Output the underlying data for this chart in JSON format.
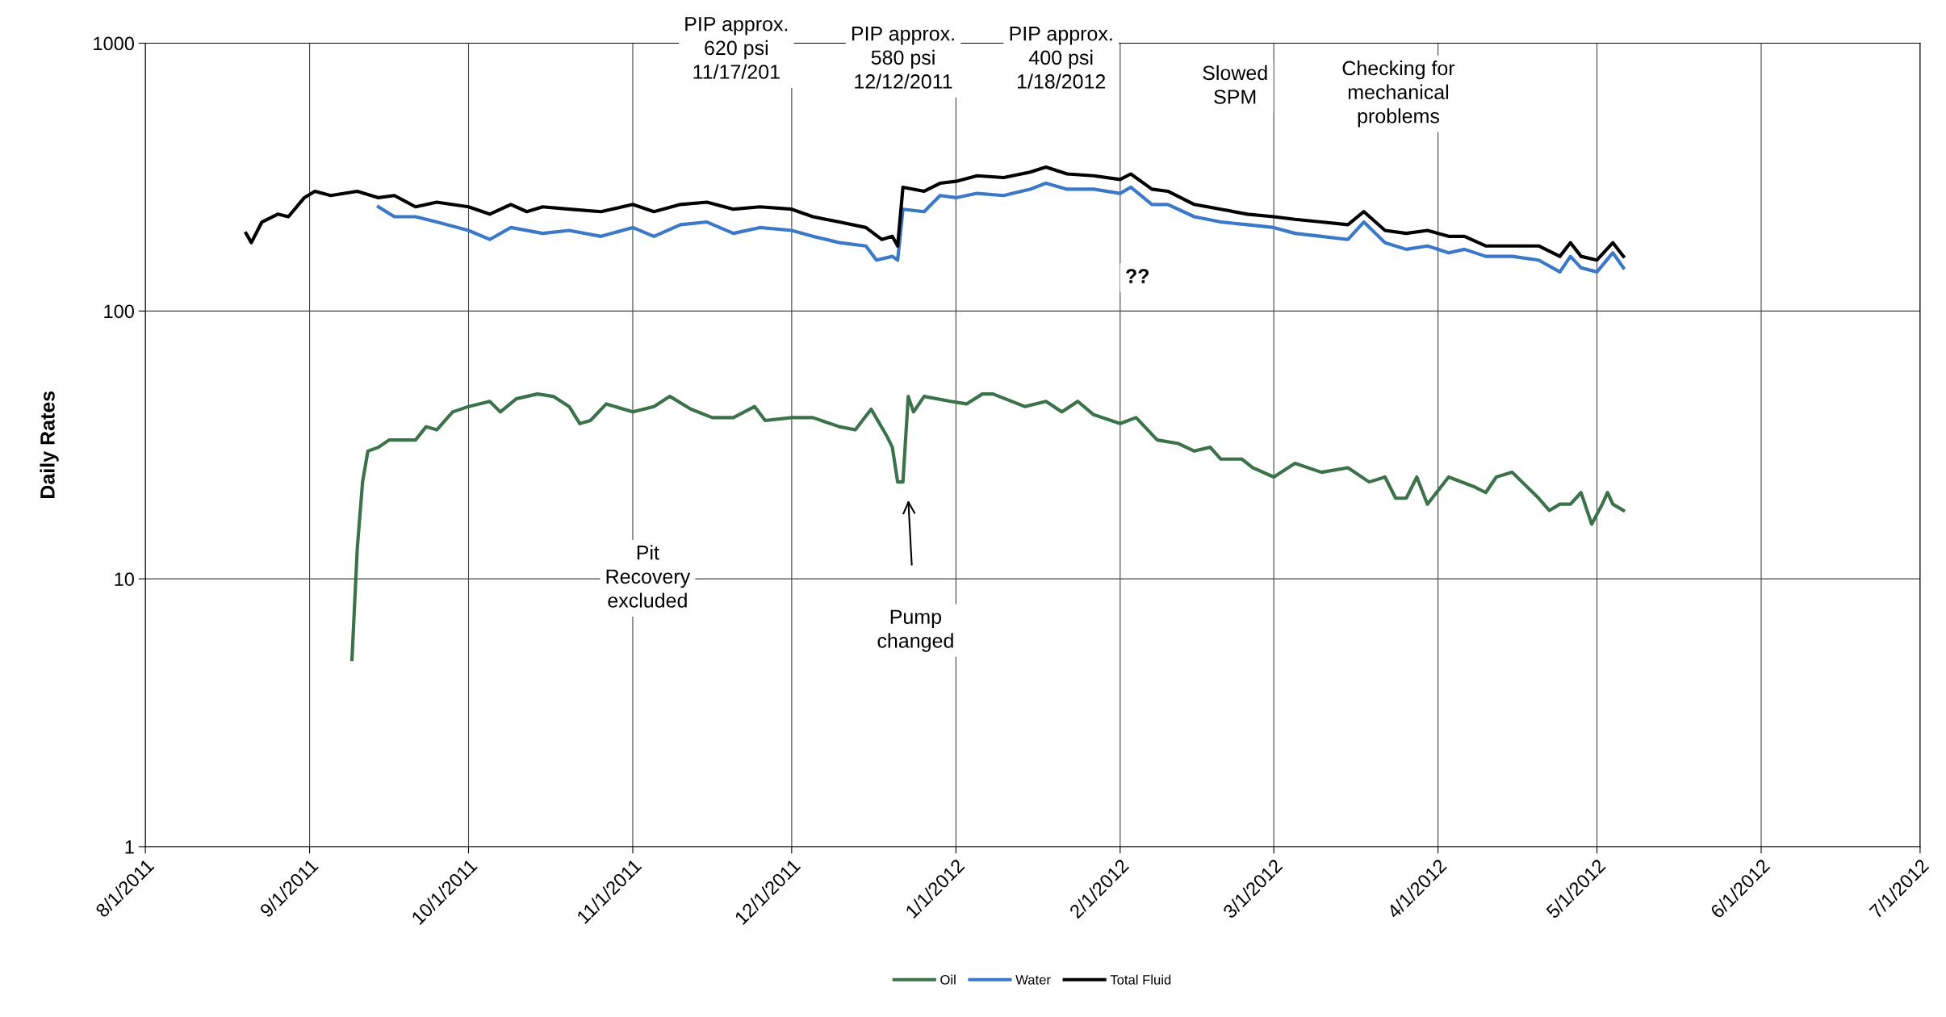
{
  "chart_data": {
    "type": "line",
    "ylabel": "Daily Rates",
    "log": "y",
    "ylim": [
      1,
      1000
    ],
    "yticks": [
      1,
      10,
      100,
      1000
    ],
    "xlim": [
      "2011-08-01",
      "2012-07-01"
    ],
    "xticks": [
      {
        "value": "2011-08-01",
        "label": "8/1/2011"
      },
      {
        "value": "2011-09-01",
        "label": "9/1/2011"
      },
      {
        "value": "2011-10-01",
        "label": "10/1/2011"
      },
      {
        "value": "2011-11-01",
        "label": "11/1/2011"
      },
      {
        "value": "2011-12-01",
        "label": "12/1/2011"
      },
      {
        "value": "2012-01-01",
        "label": "1/1/2012"
      },
      {
        "value": "2012-02-01",
        "label": "2/1/2012"
      },
      {
        "value": "2012-03-01",
        "label": "3/1/2012"
      },
      {
        "value": "2012-04-01",
        "label": "4/1/2012"
      },
      {
        "value": "2012-05-01",
        "label": "5/1/2012"
      },
      {
        "value": "2012-06-01",
        "label": "6/1/2012"
      },
      {
        "value": "2012-07-01",
        "label": "7/1/2012"
      }
    ],
    "grid": true,
    "legend": "bottom",
    "marker": "none",
    "line_style": "solid",
    "series": [
      {
        "name": "Oil",
        "color": "#3b7249",
        "x": [
          "2011-09-09",
          "2011-09-10",
          "2011-09-11",
          "2011-09-12",
          "2011-09-14",
          "2011-09-16",
          "2011-09-18",
          "2011-09-21",
          "2011-09-23",
          "2011-09-25",
          "2011-09-28",
          "2011-10-01",
          "2011-10-03",
          "2011-10-05",
          "2011-10-07",
          "2011-10-10",
          "2011-10-14",
          "2011-10-17",
          "2011-10-20",
          "2011-10-22",
          "2011-10-24",
          "2011-10-27",
          "2011-11-01",
          "2011-11-05",
          "2011-11-08",
          "2011-11-12",
          "2011-11-16",
          "2011-11-20",
          "2011-11-24",
          "2011-11-26",
          "2011-12-01",
          "2011-12-05",
          "2011-12-10",
          "2011-12-13",
          "2011-12-16",
          "2011-12-19",
          "2011-12-20",
          "2011-12-21",
          "2011-12-22",
          "2011-12-23",
          "2011-12-24",
          "2011-12-26",
          "2011-12-31",
          "2012-01-03",
          "2012-01-06",
          "2012-01-08",
          "2012-01-14",
          "2012-01-18",
          "2012-01-21",
          "2012-01-24",
          "2012-01-27",
          "2012-02-01",
          "2012-02-04",
          "2012-02-08",
          "2012-02-12",
          "2012-02-15",
          "2012-02-18",
          "2012-02-20",
          "2012-02-24",
          "2012-02-26",
          "2012-03-01",
          "2012-03-05",
          "2012-03-10",
          "2012-03-15",
          "2012-03-19",
          "2012-03-22",
          "2012-03-24",
          "2012-03-26",
          "2012-03-28",
          "2012-03-30",
          "2012-04-03",
          "2012-04-08",
          "2012-04-10",
          "2012-04-12",
          "2012-04-15",
          "2012-04-20",
          "2012-04-22",
          "2012-04-24",
          "2012-04-26",
          "2012-04-28",
          "2012-04-30",
          "2012-05-02",
          "2012-05-03",
          "2012-05-04",
          "2012-05-06"
        ],
        "values": [
          5,
          13,
          23,
          30,
          31,
          33,
          33,
          33,
          37,
          36,
          42,
          44,
          45,
          46,
          42,
          47,
          49,
          48,
          44,
          38,
          39,
          45,
          42,
          44,
          48,
          43,
          40,
          40,
          44,
          39,
          40,
          40,
          37,
          36,
          43,
          34,
          31,
          23,
          23,
          48,
          42,
          48,
          46,
          45,
          49,
          49,
          44,
          46,
          42,
          46,
          41,
          38,
          40,
          33,
          32,
          30,
          31,
          28,
          28,
          26,
          24,
          27,
          25,
          26,
          23,
          24,
          20,
          20,
          24,
          19,
          24,
          22,
          21,
          24,
          25,
          20,
          18,
          19,
          19,
          21,
          16,
          19,
          21,
          19,
          18
        ]
      },
      {
        "name": "Water",
        "color": "#3b78c8",
        "x": [
          "2011-09-14",
          "2011-09-17",
          "2011-09-21",
          "2011-09-25",
          "2011-10-01",
          "2011-10-05",
          "2011-10-09",
          "2011-10-15",
          "2011-10-20",
          "2011-10-26",
          "2011-11-01",
          "2011-11-05",
          "2011-11-10",
          "2011-11-15",
          "2011-11-20",
          "2011-11-25",
          "2011-12-01",
          "2011-12-05",
          "2011-12-10",
          "2011-12-15",
          "2011-12-17",
          "2011-12-20",
          "2011-12-21",
          "2011-12-22",
          "2011-12-26",
          "2011-12-29",
          "2012-01-01",
          "2012-01-05",
          "2012-01-10",
          "2012-01-15",
          "2012-01-18",
          "2012-01-22",
          "2012-01-27",
          "2012-02-01",
          "2012-02-03",
          "2012-02-07",
          "2012-02-10",
          "2012-02-15",
          "2012-02-20",
          "2012-02-25",
          "2012-03-01",
          "2012-03-05",
          "2012-03-10",
          "2012-03-15",
          "2012-03-18",
          "2012-03-22",
          "2012-03-26",
          "2012-03-30",
          "2012-04-03",
          "2012-04-06",
          "2012-04-10",
          "2012-04-15",
          "2012-04-20",
          "2012-04-24",
          "2012-04-26",
          "2012-04-28",
          "2012-05-01",
          "2012-05-04",
          "2012-05-06"
        ],
        "values": [
          245,
          225,
          225,
          215,
          200,
          185,
          205,
          195,
          200,
          190,
          205,
          190,
          210,
          215,
          195,
          205,
          200,
          190,
          180,
          175,
          155,
          160,
          155,
          240,
          235,
          270,
          265,
          275,
          270,
          285,
          300,
          285,
          285,
          275,
          290,
          250,
          250,
          225,
          215,
          210,
          205,
          195,
          190,
          185,
          215,
          180,
          170,
          175,
          165,
          170,
          160,
          160,
          155,
          140,
          160,
          145,
          140,
          165,
          145
        ]
      },
      {
        "name": "Total Fluid",
        "color": "#000000",
        "x": [
          "2011-08-20",
          "2011-08-21",
          "2011-08-23",
          "2011-08-26",
          "2011-08-28",
          "2011-08-31",
          "2011-09-02",
          "2011-09-05",
          "2011-09-10",
          "2011-09-14",
          "2011-09-17",
          "2011-09-21",
          "2011-09-25",
          "2011-10-01",
          "2011-10-05",
          "2011-10-09",
          "2011-10-12",
          "2011-10-15",
          "2011-10-20",
          "2011-10-26",
          "2011-11-01",
          "2011-11-05",
          "2011-11-10",
          "2011-11-15",
          "2011-11-20",
          "2011-11-25",
          "2011-12-01",
          "2011-12-05",
          "2011-12-10",
          "2011-12-15",
          "2011-12-18",
          "2011-12-20",
          "2011-12-21",
          "2011-12-22",
          "2011-12-26",
          "2011-12-29",
          "2012-01-01",
          "2012-01-05",
          "2012-01-10",
          "2012-01-15",
          "2012-01-18",
          "2012-01-22",
          "2012-01-27",
          "2012-02-01",
          "2012-02-03",
          "2012-02-07",
          "2012-02-10",
          "2012-02-15",
          "2012-02-20",
          "2012-02-25",
          "2012-03-01",
          "2012-03-05",
          "2012-03-10",
          "2012-03-15",
          "2012-03-18",
          "2012-03-22",
          "2012-03-26",
          "2012-03-30",
          "2012-04-03",
          "2012-04-06",
          "2012-04-10",
          "2012-04-15",
          "2012-04-20",
          "2012-04-24",
          "2012-04-26",
          "2012-04-28",
          "2012-05-01",
          "2012-05-04",
          "2012-05-06"
        ],
        "values": [
          195,
          180,
          215,
          230,
          225,
          265,
          280,
          270,
          280,
          265,
          270,
          245,
          255,
          245,
          230,
          250,
          235,
          245,
          240,
          235,
          250,
          235,
          250,
          255,
          240,
          245,
          240,
          225,
          215,
          205,
          185,
          190,
          175,
          290,
          280,
          300,
          305,
          320,
          315,
          330,
          345,
          325,
          320,
          310,
          325,
          285,
          280,
          250,
          240,
          230,
          225,
          220,
          215,
          210,
          235,
          200,
          195,
          200,
          190,
          190,
          175,
          175,
          175,
          160,
          180,
          160,
          155,
          180,
          160
        ]
      }
    ],
    "annotations": [
      "PIP approx.\n620 psi\n11/17/201",
      "PIP approx.\n580 psi\n12/12/2011",
      "PIP approx.\n400 psi\n1/18/2012",
      "Slowed\nSPM",
      "Checking for\nmechanical\nproblems",
      "??",
      "Pit\nRecovery\nexcluded",
      "Pump\nchanged"
    ]
  }
}
